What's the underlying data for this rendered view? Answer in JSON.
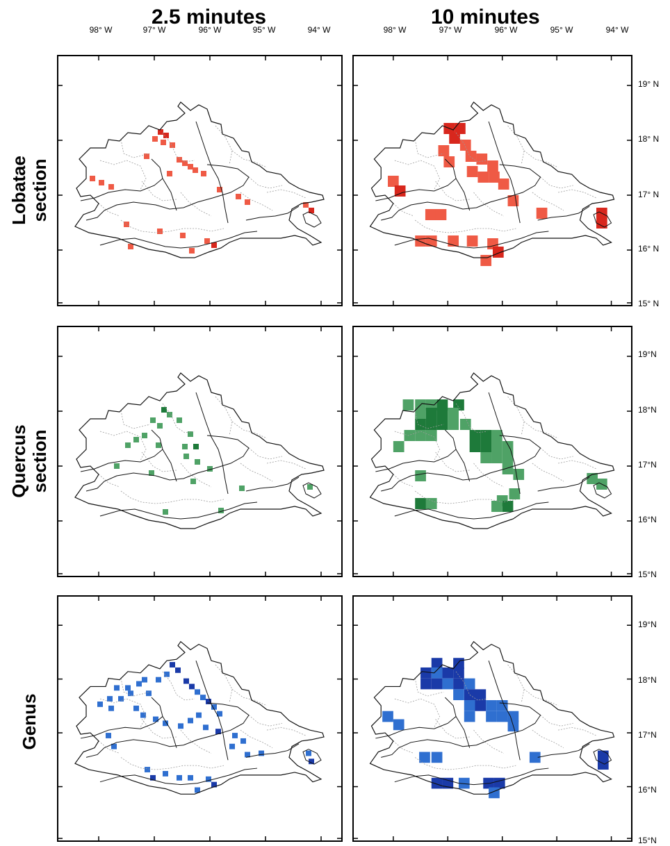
{
  "columns": [
    "2.5 minutes",
    "10 minutes"
  ],
  "rows": [
    {
      "line1": "Lobatae",
      "line2": "section",
      "color_light": "#f58a78",
      "color_mid": "#ef5a45",
      "color_dark": "#d8271d"
    },
    {
      "line1": "Quercus",
      "line2": "section",
      "color_light": "#8ec79d",
      "color_mid": "#4fa266",
      "color_dark": "#1e7a3a"
    },
    {
      "line1": "Genus",
      "line2": "",
      "color_light": "#4a9be0",
      "color_mid": "#2f6fd0",
      "color_dark": "#1a3aa8"
    }
  ],
  "lon_labels": [
    "98° W",
    "97° W",
    "96° W",
    "95° W",
    "94° W"
  ],
  "lat_labels": [
    [
      "19° N",
      "18° N",
      "17° N",
      "16° N",
      "15° N"
    ],
    [
      "19°N",
      "18°N",
      "17°N",
      "16°N",
      "15°N"
    ],
    [
      "19°N",
      "18°N",
      "17°N",
      "16°N",
      "15°N"
    ]
  ]
}
